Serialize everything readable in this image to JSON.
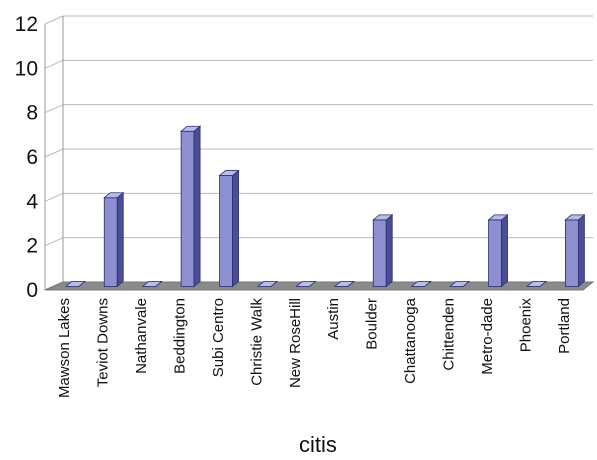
{
  "chart_data": {
    "type": "bar",
    "title": "",
    "xlabel": "citis",
    "ylabel": "",
    "ylim": [
      0,
      12
    ],
    "yticks": [
      0,
      2,
      4,
      6,
      8,
      10,
      12
    ],
    "grid": true,
    "legend": "none",
    "categories": [
      "Mawson Lakes",
      "Teviot Downs",
      "Nathanvale",
      "Beddington",
      "Subi Centro",
      "Christie Walk",
      "New RoseHill",
      "Austin",
      "Boulder",
      "Chattanooga",
      "Chittenden",
      "Metro-dade",
      "Phoenix",
      "Portland"
    ],
    "values": [
      0,
      4,
      0,
      7,
      5,
      0,
      0,
      0,
      3,
      0,
      0,
      3,
      0,
      3
    ],
    "colors": {
      "bar_front": "#8c8fd0",
      "bar_side": "#4a4d98",
      "bar_top": "#b9bbe8",
      "floor": "#8a8a8a",
      "grid": "#b8b8b8"
    }
  }
}
